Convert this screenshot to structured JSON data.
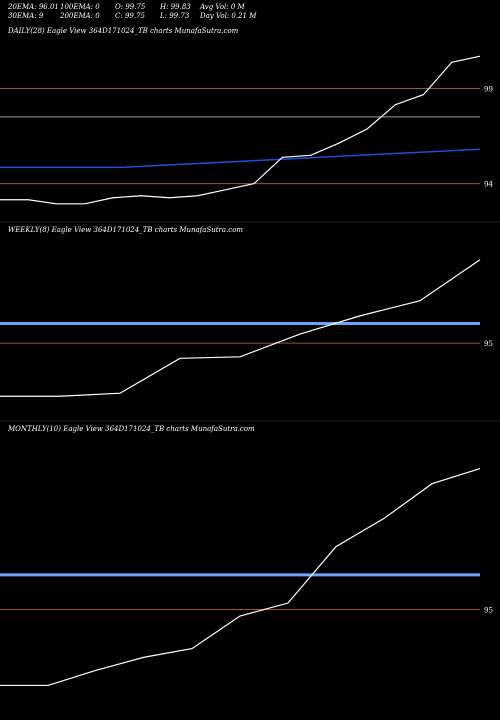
{
  "header": {
    "r1": [
      "20EMA: 96.01",
      "100EMA: 0",
      "O: 99.75",
      "H: 99.83",
      "Avg Vol: 0  M"
    ],
    "r2": [
      "30EMA: 9",
      "200EMA: 0",
      "C: 99.75",
      "L: 99.73",
      "Day Vol: 0.21 M"
    ]
  },
  "colors": {
    "background": "#000000",
    "price_line": "#ffffff",
    "ema_blue": "#1f4fd8",
    "ema_light": "#6fa0ff",
    "level_line": "#a0522d",
    "grey_line": "#9a9a9a"
  },
  "chart_data": [
    {
      "type": "line",
      "title": "DAILY(28) Eagle  View  364D171024_TB charts MunafaSutra.com",
      "tick_labels": [
        "99",
        "94"
      ],
      "series": [
        {
          "values": [
            93.5,
            93.5,
            93.3,
            93.3,
            93.6,
            93.7,
            93.6,
            93.7,
            94.0,
            94.3,
            95.6,
            95.7,
            96.3,
            97.0,
            98.2,
            98.7,
            100.3,
            100.6
          ]
        },
        {
          "values": [
            95.1,
            95.2,
            95.3,
            95.4,
            95.5,
            95.6,
            95.7,
            95.8,
            95.9,
            96.0
          ]
        }
      ],
      "levels": [
        99.0,
        97.6,
        94.3
      ],
      "ylim": [
        92.5,
        101.5
      ]
    },
    {
      "type": "line",
      "title": "WEEKLY(8) Eagle  View  364D171024_TB charts MunafaSutra.com",
      "tick_labels": [
        "95"
      ],
      "series": [
        {
          "values": [
            91.5,
            91.5,
            91.7,
            94.0,
            94.1,
            95.6,
            96.8,
            97.8,
            100.5
          ]
        },
        {
          "values": [
            96.3
          ]
        }
      ],
      "levels": [
        95.0
      ],
      "ylim": [
        90.0,
        102.0
      ]
    },
    {
      "type": "line",
      "title": "MONTHLY(10) Eagle  View  364D171024_TB charts MunafaSutra.com",
      "tick_labels": [
        "95"
      ],
      "series": [
        {
          "values": [
            91.5,
            91.5,
            92.2,
            92.8,
            93.2,
            94.7,
            95.3,
            97.9,
            99.2,
            100.8,
            101.5
          ]
        },
        {
          "values": [
            96.6
          ]
        }
      ],
      "levels": [
        95.0
      ],
      "ylim": [
        90.0,
        103.0
      ]
    }
  ]
}
